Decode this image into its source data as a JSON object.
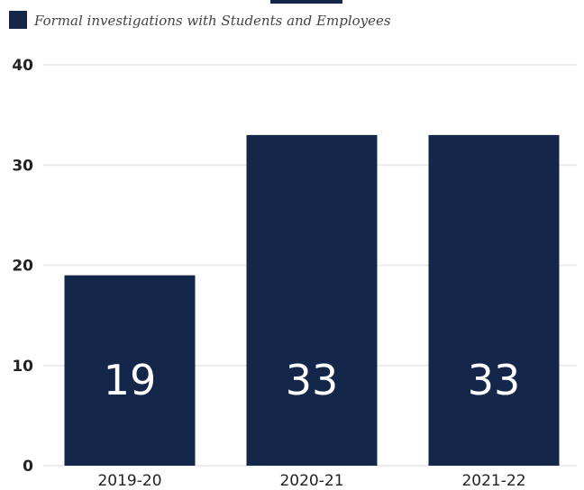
{
  "chart_data": {
    "type": "bar",
    "categories": [
      "2019-20",
      "2020-21",
      "2021-22"
    ],
    "series": [
      {
        "name": "Formal investigations with Students and Employees",
        "values": [
          19,
          33,
          33
        ]
      }
    ],
    "ylim": [
      0,
      40
    ],
    "yticks": [
      0,
      10,
      20,
      30,
      40
    ],
    "grid": true,
    "legend": "top-left",
    "colors": {
      "bar": "#14274a",
      "grid": "#ececec"
    }
  }
}
